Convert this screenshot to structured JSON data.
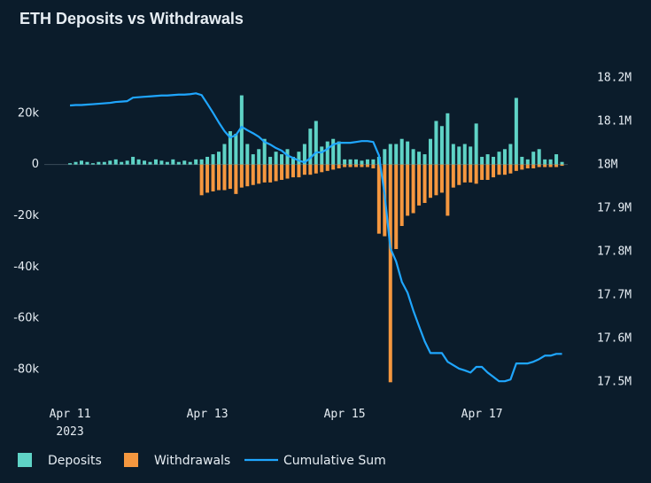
{
  "chart_data": {
    "type": "bar_line",
    "title": "ETH Deposits vs Withdrawals",
    "x": [
      "2023-04-11T00:00",
      "2023-04-11T02:00",
      "2023-04-11T04:00",
      "2023-04-11T06:00",
      "2023-04-11T08:00",
      "2023-04-11T10:00",
      "2023-04-11T12:00",
      "2023-04-11T14:00",
      "2023-04-11T16:00",
      "2023-04-11T18:00",
      "2023-04-11T20:00",
      "2023-04-11T22:00",
      "2023-04-12T00:00",
      "2023-04-12T02:00",
      "2023-04-12T04:00",
      "2023-04-12T06:00",
      "2023-04-12T08:00",
      "2023-04-12T10:00",
      "2023-04-12T12:00",
      "2023-04-12T14:00",
      "2023-04-12T16:00",
      "2023-04-12T18:00",
      "2023-04-12T20:00",
      "2023-04-12T22:00",
      "2023-04-13T00:00",
      "2023-04-13T02:00",
      "2023-04-13T04:00",
      "2023-04-13T06:00",
      "2023-04-13T08:00",
      "2023-04-13T10:00",
      "2023-04-13T12:00",
      "2023-04-13T14:00",
      "2023-04-13T16:00",
      "2023-04-13T18:00",
      "2023-04-13T20:00",
      "2023-04-13T22:00",
      "2023-04-14T00:00",
      "2023-04-14T02:00",
      "2023-04-14T04:00",
      "2023-04-14T06:00",
      "2023-04-14T08:00",
      "2023-04-14T10:00",
      "2023-04-14T12:00",
      "2023-04-14T14:00",
      "2023-04-14T16:00",
      "2023-04-14T18:00",
      "2023-04-14T20:00",
      "2023-04-14T22:00",
      "2023-04-15T00:00",
      "2023-04-15T02:00",
      "2023-04-15T04:00",
      "2023-04-15T06:00",
      "2023-04-15T08:00",
      "2023-04-15T10:00",
      "2023-04-15T12:00",
      "2023-04-15T14:00",
      "2023-04-15T16:00",
      "2023-04-15T18:00",
      "2023-04-15T20:00",
      "2023-04-15T22:00",
      "2023-04-16T00:00",
      "2023-04-16T02:00",
      "2023-04-16T04:00",
      "2023-04-16T06:00",
      "2023-04-16T08:00",
      "2023-04-16T10:00",
      "2023-04-16T12:00",
      "2023-04-16T14:00",
      "2023-04-16T16:00",
      "2023-04-16T18:00",
      "2023-04-16T20:00",
      "2023-04-16T22:00",
      "2023-04-17T00:00",
      "2023-04-17T02:00",
      "2023-04-17T04:00",
      "2023-04-17T06:00",
      "2023-04-17T08:00",
      "2023-04-17T10:00",
      "2023-04-17T12:00",
      "2023-04-17T14:00",
      "2023-04-17T16:00",
      "2023-04-17T18:00",
      "2023-04-17T20:00",
      "2023-04-17T22:00",
      "2023-04-18T00:00",
      "2023-04-18T02:00",
      "2023-04-18T04:00"
    ],
    "xlim": [
      "2023-04-10T15:00",
      "2023-04-18T06:00"
    ],
    "xticks": [
      {
        "value": "2023-04-11T00:00",
        "label": "Apr 11\n2023"
      },
      {
        "value": "2023-04-13T00:00",
        "label": "Apr 13"
      },
      {
        "value": "2023-04-15T00:00",
        "label": "Apr 15"
      },
      {
        "value": "2023-04-17T00:00",
        "label": "Apr 17"
      }
    ],
    "ylim": [
      -88000,
      40000
    ],
    "yticks": [
      {
        "value": 20000,
        "label": "20k"
      },
      0,
      {
        "value": -20000,
        "label": "-20k"
      },
      {
        "value": -40000,
        "label": "-40k"
      },
      {
        "value": -60000,
        "label": "-60k"
      },
      {
        "value": -80000,
        "label": "-80k"
      }
    ],
    "y2lim": [
      17482000,
      18237000
    ],
    "y2ticks": [
      {
        "value": 18200000,
        "label": "18.2M"
      },
      {
        "value": 18100000,
        "label": "18.1M"
      },
      {
        "value": 18000000,
        "label": "18M"
      },
      {
        "value": 17900000,
        "label": "17.9M"
      },
      {
        "value": 17800000,
        "label": "17.8M"
      },
      {
        "value": 17700000,
        "label": "17.7M"
      },
      {
        "value": 17600000,
        "label": "17.6M"
      },
      {
        "value": 17500000,
        "label": "17.5M"
      }
    ],
    "zero_line": true,
    "series": [
      {
        "name": "Deposits",
        "color": "#5fd3c6",
        "kind": "bar",
        "values": [
          500,
          1000,
          1500,
          1000,
          500,
          1000,
          1000,
          1500,
          2000,
          1000,
          1500,
          3000,
          2000,
          1500,
          1000,
          2000,
          1500,
          1000,
          2000,
          1000,
          1500,
          1000,
          2000,
          2000,
          3000,
          4000,
          5000,
          8000,
          13000,
          12000,
          27000,
          8000,
          4000,
          6000,
          10000,
          3000,
          5000,
          4000,
          6000,
          3000,
          5000,
          8000,
          14000,
          17000,
          7000,
          9000,
          10000,
          9000,
          2000,
          2000,
          2000,
          1500,
          2000,
          2000,
          3000,
          6000,
          8000,
          8000,
          10000,
          9000,
          6000,
          5000,
          4000,
          10000,
          17000,
          15000,
          20000,
          8000,
          7000,
          8000,
          7000,
          16000,
          3000,
          4000,
          3000,
          5000,
          6000,
          8000,
          26000,
          3000,
          2000,
          5000,
          6000,
          2000,
          2000,
          4000,
          1000
        ]
      },
      {
        "name": "Withdrawals",
        "color": "#f5973f",
        "kind": "bar",
        "values": [
          0,
          0,
          0,
          0,
          0,
          0,
          0,
          0,
          0,
          0,
          0,
          0,
          0,
          0,
          0,
          0,
          0,
          0,
          0,
          0,
          0,
          0,
          0,
          -12000,
          -11000,
          -10500,
          -10000,
          -10000,
          -9500,
          -11500,
          -9000,
          -8500,
          -8000,
          -7500,
          -7000,
          -7000,
          -6500,
          -6000,
          -5500,
          -5000,
          -5000,
          -4000,
          -4000,
          -3500,
          -3000,
          -2500,
          -2000,
          -1500,
          -1000,
          -1000,
          -1000,
          -1000,
          -1000,
          -1500,
          -27000,
          -28000,
          -85000,
          -33000,
          -24000,
          -20000,
          -19000,
          -16000,
          -15000,
          -13000,
          -12000,
          -11000,
          -20000,
          -9000,
          -8000,
          -7000,
          -7000,
          -7500,
          -6000,
          -6000,
          -5000,
          -4000,
          -4000,
          -3500,
          -2500,
          -2000,
          -1500,
          -1500,
          -1000,
          -1000,
          -1000,
          -1000,
          -500
        ]
      },
      {
        "name": "Cumulative Sum",
        "color": "#1fa6ff",
        "kind": "line",
        "axis": "y2",
        "values": [
          18137000,
          18138000,
          18138000,
          18139000,
          18140000,
          18141000,
          18142000,
          18143000,
          18145000,
          18146000,
          18147000,
          18155000,
          18156000,
          18157000,
          18158000,
          18159000,
          18160000,
          18160000,
          18161000,
          18162000,
          18162000,
          18163000,
          18165000,
          18161000,
          18141000,
          18120000,
          18098000,
          18078000,
          18063000,
          18069000,
          18088000,
          18080000,
          18073000,
          18065000,
          18053000,
          18047000,
          18039000,
          18033000,
          18022000,
          18016000,
          18010000,
          18006000,
          18016000,
          18029000,
          18029000,
          18037000,
          18047000,
          18051000,
          18051000,
          18051000,
          18053000,
          18055000,
          18055000,
          18053000,
          18022000,
          17931000,
          17808000,
          17778000,
          17731000,
          17706000,
          17665000,
          17629000,
          17594000,
          17567000,
          17567000,
          17567000,
          17547000,
          17539000,
          17531000,
          17527000,
          17522000,
          17535000,
          17535000,
          17522000,
          17512000,
          17502000,
          17502000,
          17506000,
          17543000,
          17543000,
          17543000,
          17547000,
          17553000,
          17561000,
          17561000,
          17565000,
          17565000
        ]
      }
    ]
  }
}
